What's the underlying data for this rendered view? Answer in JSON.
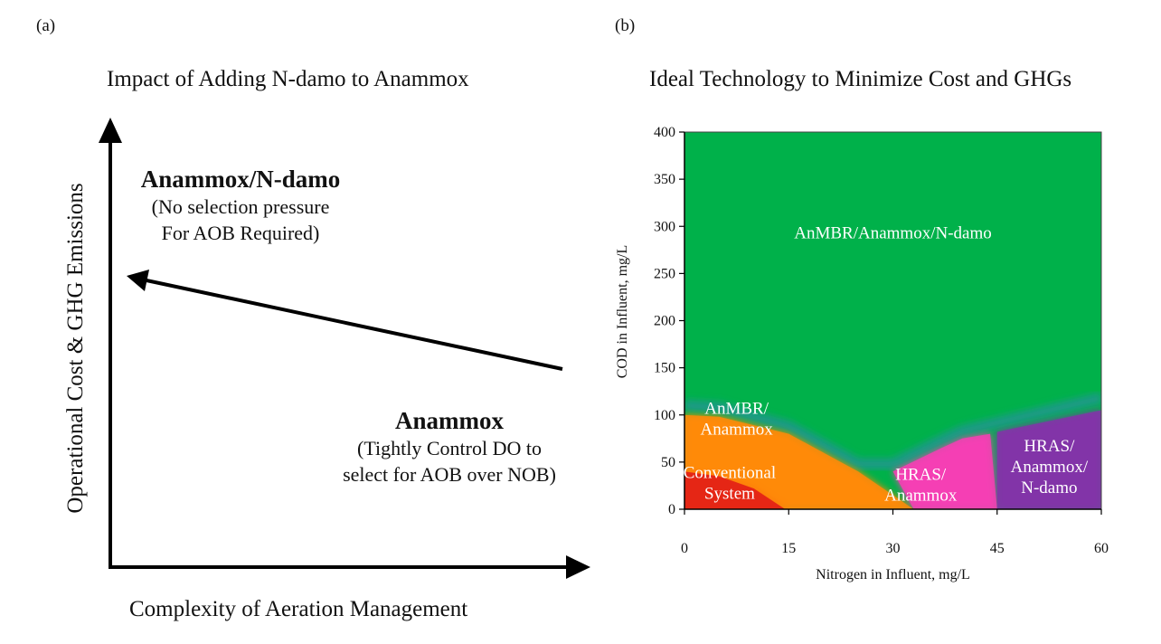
{
  "panel_a": {
    "label": "(a)",
    "title": "Impact of Adding N-damo to Anammox",
    "ylabel": "Operational Cost & GHG Emissions",
    "xlabel": "Complexity of Aeration Management",
    "top_head": "Anammox/N-damo",
    "top_sub": [
      "(No selection pressure",
      "For AOB Required)"
    ],
    "bottom_head": "Anammox",
    "bottom_sub": [
      "(Tightly Control DO to",
      "select for AOB over NOB)"
    ]
  },
  "panel_b": {
    "label": "(b)"
  },
  "colors": {
    "green": "#00b14a",
    "orange": "#ff8a08",
    "red": "#e01818",
    "pink": "#f43fb4",
    "purple": "#8334a8",
    "teal": "#1a9a88"
  },
  "chart_data": {
    "type": "heatmap",
    "title": "Ideal Technology to Minimize Cost and GHGs",
    "xlabel": "Nitrogen in Influent, mg/L",
    "ylabel": "COD in Influent, mg/L",
    "xlim": [
      0,
      60
    ],
    "ylim": [
      0,
      400
    ],
    "x_ticks": [
      0,
      15,
      30,
      45,
      60
    ],
    "y_ticks": [
      0,
      50,
      100,
      150,
      200,
      250,
      300,
      350,
      400
    ],
    "regions": [
      {
        "name": "AnMBR/Anammox/N-damo",
        "lines": [
          "AnMBR/Anammox/N-damo"
        ],
        "color": "green",
        "label_at": [
          30,
          293
        ]
      },
      {
        "name": "AnMBR/Anammox",
        "lines": [
          "AnMBR/",
          "Anammox"
        ],
        "color": "orange",
        "label_at": [
          7.5,
          96
        ],
        "polygon": [
          [
            0,
            100
          ],
          [
            5,
            98
          ],
          [
            15,
            80
          ],
          [
            25,
            40
          ],
          [
            33,
            0
          ],
          [
            0,
            0
          ]
        ]
      },
      {
        "name": "Conventional System",
        "lines": [
          "Conventional",
          "System"
        ],
        "color": "red",
        "label_at": [
          6.5,
          28
        ],
        "polygon": [
          [
            0,
            40
          ],
          [
            5,
            35
          ],
          [
            10,
            22
          ],
          [
            14.5,
            0
          ],
          [
            0,
            0
          ]
        ]
      },
      {
        "name": "HRAS/Anammox",
        "lines": [
          "HRAS/",
          "Anammox"
        ],
        "color": "pink",
        "label_at": [
          34,
          26
        ],
        "polygon": [
          [
            30,
            40
          ],
          [
            37,
            65
          ],
          [
            40,
            75
          ],
          [
            44,
            80
          ],
          [
            45,
            0
          ],
          [
            33,
            0
          ]
        ]
      },
      {
        "name": "HRAS/Anammox/N-damo",
        "lines": [
          "HRAS/",
          "Anammox/",
          "N-damo"
        ],
        "color": "purple",
        "label_at": [
          52.5,
          45
        ],
        "polygon": [
          [
            45,
            82
          ],
          [
            60,
            105
          ],
          [
            60,
            0
          ],
          [
            45,
            0
          ]
        ]
      }
    ]
  }
}
